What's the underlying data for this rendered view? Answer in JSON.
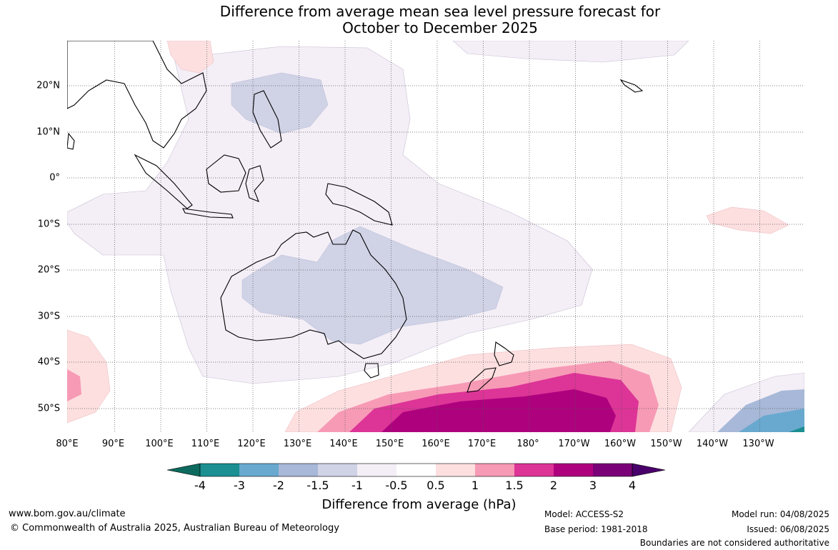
{
  "title": {
    "line1": "Difference from average mean sea level pressure forecast for",
    "line2": "October to December 2025"
  },
  "longitude_labels": [
    "80°E",
    "90°E",
    "100°E",
    "110°E",
    "120°E",
    "130°E",
    "140°E",
    "150°E",
    "160°E",
    "170°E",
    "180°",
    "170°W",
    "160°W",
    "150°W",
    "140°W",
    "130°W"
  ],
  "latitude_labels": [
    "20°N",
    "10°N",
    "0°",
    "10°S",
    "20°S",
    "30°S",
    "40°S",
    "50°S"
  ],
  "colorbar": {
    "title": "Difference from average (hPa)",
    "ticks": [
      "-4",
      "-3",
      "-2",
      "-1.5",
      "-1",
      "-0.5",
      "0.5",
      "1",
      "1.5",
      "2",
      "3",
      "4"
    ],
    "colors": [
      "#0c6b5e",
      "#1b8f91",
      "#69a9cf",
      "#a7b8d8",
      "#d0d3e6",
      "#f4eef6",
      "#ffffff",
      "#fddfe0",
      "#f79ab6",
      "#dd3497",
      "#ae017e",
      "#7a0177",
      "#4a006a"
    ]
  },
  "footer": {
    "website": "www.bom.gov.au/climate",
    "copyright": "© Commonwealth of Australia 2025, Australian Bureau of Meteorology",
    "model": "Model: ACCESS-S2",
    "base_period": "Base period: 1981-2018",
    "model_run": "Model run: 04/08/2025",
    "issued": "Issued: 06/08/2025",
    "disclaimer": "Boundaries are not considered authoritative"
  }
}
